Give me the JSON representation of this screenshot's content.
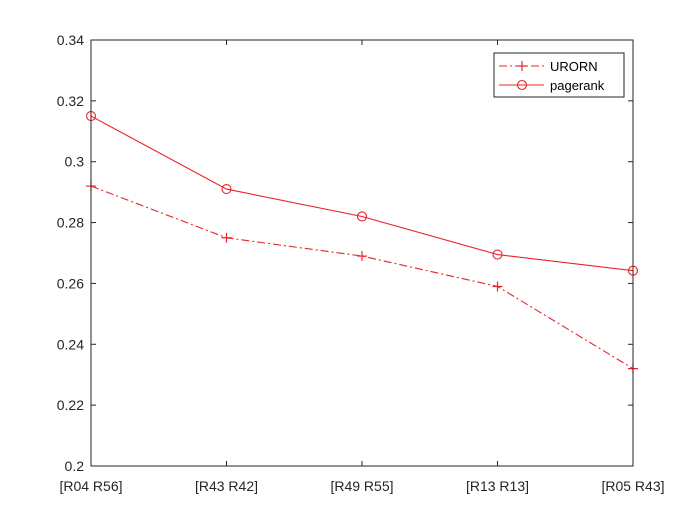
{
  "chart_data": {
    "type": "line",
    "categories": [
      "[R04 R56]",
      "[R43 R42]",
      "[R49 R55]",
      "[R13 R13]",
      "[R05 R43]"
    ],
    "series": [
      {
        "name": "URORN",
        "values": [
          0.292,
          0.275,
          0.269,
          0.259,
          0.232
        ],
        "marker": "plus",
        "line_style": "dash-dot",
        "color": "#e8242a"
      },
      {
        "name": "pagerank",
        "values": [
          0.315,
          0.291,
          0.282,
          0.2695,
          0.2642
        ],
        "marker": "circle",
        "line_style": "solid",
        "color": "#e8242a"
      }
    ],
    "ylim": [
      0.2,
      0.34
    ],
    "yticks": [
      "0.2",
      "0.22",
      "0.24",
      "0.26",
      "0.28",
      "0.3",
      "0.32",
      "0.34"
    ],
    "legend_position": "top-right",
    "grid": false,
    "title": "",
    "xlabel": "",
    "ylabel": ""
  }
}
